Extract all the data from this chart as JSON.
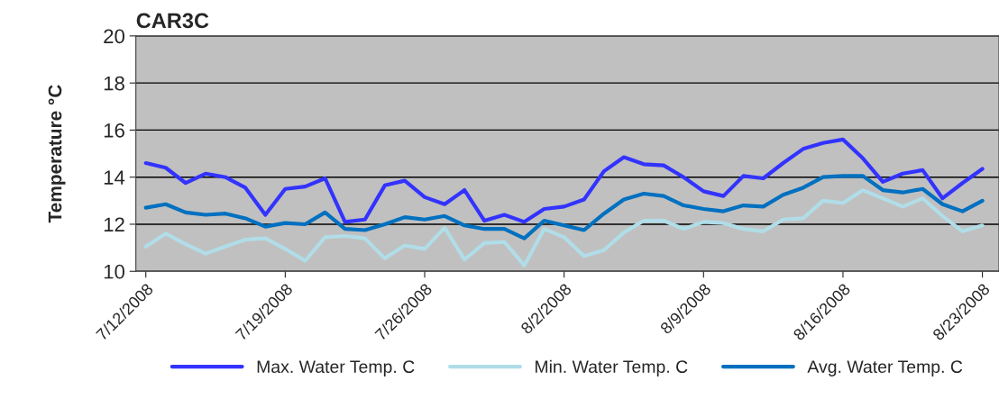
{
  "chart_data": {
    "type": "line",
    "title": "CAR3C",
    "ylabel": "Temperature °C",
    "x": [
      "2008-07-12",
      "2008-07-13",
      "2008-07-14",
      "2008-07-15",
      "2008-07-16",
      "2008-07-17",
      "2008-07-18",
      "2008-07-19",
      "2008-07-20",
      "2008-07-21",
      "2008-07-22",
      "2008-07-23",
      "2008-07-24",
      "2008-07-25",
      "2008-07-26",
      "2008-07-27",
      "2008-07-28",
      "2008-07-29",
      "2008-07-30",
      "2008-07-31",
      "2008-08-01",
      "2008-08-02",
      "2008-08-03",
      "2008-08-04",
      "2008-08-05",
      "2008-08-06",
      "2008-08-07",
      "2008-08-08",
      "2008-08-09",
      "2008-08-10",
      "2008-08-11",
      "2008-08-12",
      "2008-08-13",
      "2008-08-14",
      "2008-08-15",
      "2008-08-16",
      "2008-08-17",
      "2008-08-18",
      "2008-08-19",
      "2008-08-20",
      "2008-08-21",
      "2008-08-22",
      "2008-08-23"
    ],
    "series": [
      {
        "name": "Max. Water Temp. C",
        "color": "#3333ff",
        "values": [
          14.6,
          14.4,
          13.75,
          14.15,
          14.0,
          13.55,
          12.4,
          13.5,
          13.6,
          13.95,
          12.1,
          12.2,
          13.65,
          13.85,
          13.15,
          12.85,
          13.45,
          12.15,
          12.4,
          12.1,
          12.65,
          12.75,
          13.05,
          14.25,
          14.85,
          14.55,
          14.5,
          14.0,
          13.4,
          13.2,
          14.05,
          13.95,
          14.6,
          15.2,
          15.45,
          15.6,
          14.8,
          13.8,
          14.15,
          14.3,
          13.1,
          13.75,
          14.35
        ]
      },
      {
        "name": "Min. Water Temp. C",
        "color": "#b0dde8",
        "values": [
          11.05,
          11.6,
          11.15,
          10.75,
          11.05,
          11.35,
          11.4,
          10.95,
          10.45,
          11.45,
          11.5,
          11.4,
          10.55,
          11.1,
          10.95,
          11.85,
          10.5,
          11.2,
          11.25,
          10.25,
          11.8,
          11.45,
          10.65,
          10.9,
          11.65,
          12.15,
          12.15,
          11.8,
          12.1,
          12.05,
          11.8,
          11.7,
          12.2,
          12.25,
          13.0,
          12.9,
          13.45,
          13.1,
          12.75,
          13.1,
          12.35,
          11.7,
          11.95
        ]
      },
      {
        "name": "Avg. Water Temp. C",
        "color": "#0070c0",
        "values": [
          12.7,
          12.85,
          12.5,
          12.4,
          12.45,
          12.25,
          11.9,
          12.05,
          12.0,
          12.5,
          11.8,
          11.75,
          12.0,
          12.3,
          12.2,
          12.35,
          11.95,
          11.8,
          11.8,
          11.4,
          12.15,
          11.95,
          11.75,
          12.45,
          13.05,
          13.3,
          13.2,
          12.8,
          12.65,
          12.55,
          12.8,
          12.75,
          13.25,
          13.55,
          14.0,
          14.05,
          14.05,
          13.45,
          13.35,
          13.5,
          12.85,
          12.55,
          13.0
        ]
      }
    ],
    "xlim": [
      "2008-07-11T12:00",
      "2008-08-23T20:00"
    ],
    "xticks": [
      {
        "value": "2008-07-12",
        "label": "7/12/2008"
      },
      {
        "value": "2008-07-19",
        "label": "7/19/2008"
      },
      {
        "value": "2008-07-26",
        "label": "7/26/2008"
      },
      {
        "value": "2008-08-02",
        "label": "8/2/2008"
      },
      {
        "value": "2008-08-09",
        "label": "8/9/2008"
      },
      {
        "value": "2008-08-16",
        "label": "8/16/2008"
      },
      {
        "value": "2008-08-23",
        "label": "8/23/2008"
      }
    ],
    "ylim": [
      10,
      20
    ],
    "yticks": [
      10,
      12,
      14,
      16,
      18,
      20
    ],
    "grid": "y",
    "legend": "bottom",
    "marker": "none",
    "line_style": "solid"
  }
}
